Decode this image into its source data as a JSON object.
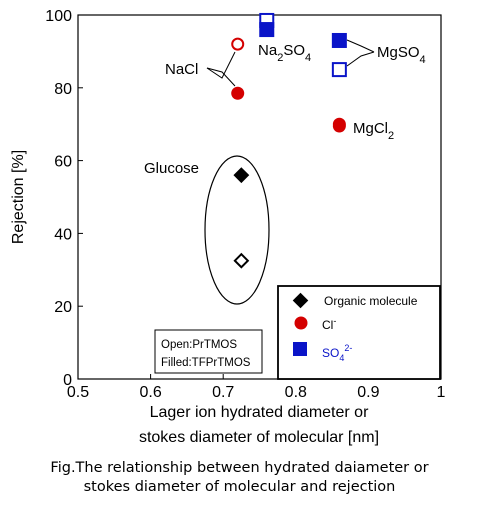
{
  "chart_data": {
    "type": "scatter",
    "xlabel_line1": "Lager ion hydrated diameter or",
    "xlabel_line2": "stokes diameter of molecular [nm]",
    "ylabel": "Rejection [%]",
    "xlim": [
      0.5,
      1.0
    ],
    "ylim": [
      0,
      100
    ],
    "xticks": [
      "0.5",
      "0.6",
      "0.7",
      "0.8",
      "0.9",
      "1"
    ],
    "yticks": [
      "0",
      "20",
      "40",
      "60",
      "80",
      "100"
    ],
    "grid": false,
    "series": [
      {
        "name": "Organic molecule",
        "marker": "diamond",
        "color": "#000000",
        "points": [
          {
            "x": 0.725,
            "y": 56,
            "filled": true
          },
          {
            "x": 0.725,
            "y": 32.5,
            "filled": false
          }
        ]
      },
      {
        "name": "Cl-",
        "marker": "circle",
        "color": "#d40000",
        "points": [
          {
            "x": 0.72,
            "y": 92,
            "filled": false
          },
          {
            "x": 0.72,
            "y": 78.5,
            "filled": true
          },
          {
            "x": 0.86,
            "y": 69.5,
            "filled": false
          },
          {
            "x": 0.86,
            "y": 70,
            "filled": true
          }
        ]
      },
      {
        "name": "SO42-",
        "marker": "square",
        "color": "#0a14c8",
        "points": [
          {
            "x": 0.76,
            "y": 98.5,
            "filled": false
          },
          {
            "x": 0.76,
            "y": 96,
            "filled": true
          },
          {
            "x": 0.86,
            "y": 85,
            "filled": false
          },
          {
            "x": 0.86,
            "y": 93,
            "filled": true
          }
        ]
      }
    ],
    "annotations": {
      "nacl": "NaCl",
      "na2so4_base": "Na",
      "na2so4_sub1": "2",
      "na2so4_mid": "SO",
      "na2so4_sub2": "4",
      "mgso4_base": "MgSO",
      "mgso4_sub": "4",
      "mgcl2_base": "MgCl",
      "mgcl2_sub": "2",
      "glucose": "Glucose"
    },
    "legend": {
      "placement": "bottom-right",
      "organic": "Organic molecule",
      "cl_base": "Cl",
      "cl_sup": "-",
      "so4_base": "SO",
      "so4_sub": "4",
      "so4_sup": "2-"
    },
    "notes": {
      "line1": "Open:PrTMOS",
      "line2": "Filled:TFPrTMOS"
    }
  },
  "caption": {
    "line1": "Fig.The relationship between hydrated daiameter or",
    "line2": "stokes diameter of molecular and rejection"
  }
}
